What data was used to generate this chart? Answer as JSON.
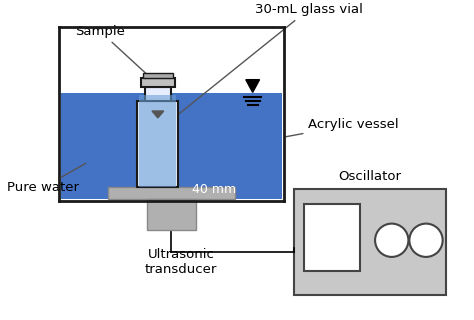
{
  "bg_color": "#ffffff",
  "water_color": "#4472c4",
  "vessel_color": "#1a1a1a",
  "transducer_color": "#b0b0b0",
  "oscillator_color": "#c8c8c8",
  "oscillator_border": "#444444",
  "vial_body_color": "#e8eeff",
  "vial_cap_color": "#c0c0c0",
  "text_color": "#000000",
  "labels": {
    "sample": "Sample",
    "vial": "30-mL glass vial",
    "vessel": "Acrylic vessel",
    "water": "Pure water",
    "transducer": "Ultrasonic\ntransducer",
    "oscillator": "Oscillator",
    "distance": "40 mm"
  }
}
